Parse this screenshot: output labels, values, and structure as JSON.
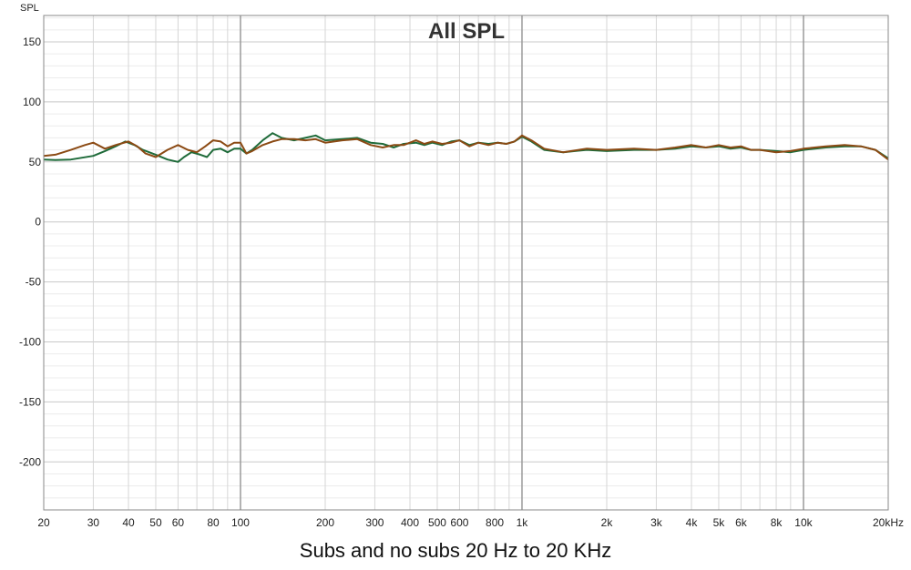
{
  "caption": "Subs and no subs 20 Hz to 20 KHz",
  "chart_data": {
    "type": "line",
    "title": "All SPL",
    "ylabel": "SPL",
    "xlabel": "",
    "x_scale": "log",
    "xlim": [
      20,
      20000
    ],
    "ylim": [
      -240,
      172
    ],
    "y_ticks": [
      150,
      100,
      50,
      0,
      -50,
      -100,
      -150,
      -200
    ],
    "x_ticks": [
      {
        "v": 20,
        "label": "20"
      },
      {
        "v": 30,
        "label": "30"
      },
      {
        "v": 40,
        "label": "40"
      },
      {
        "v": 50,
        "label": "50"
      },
      {
        "v": 60,
        "label": "60"
      },
      {
        "v": 80,
        "label": "80"
      },
      {
        "v": 100,
        "label": "100"
      },
      {
        "v": 200,
        "label": "200"
      },
      {
        "v": 300,
        "label": "300"
      },
      {
        "v": 400,
        "label": "400"
      },
      {
        "v": 500,
        "label": "500"
      },
      {
        "v": 600,
        "label": "600"
      },
      {
        "v": 800,
        "label": "800"
      },
      {
        "v": 1000,
        "label": "1k"
      },
      {
        "v": 2000,
        "label": "2k"
      },
      {
        "v": 3000,
        "label": "3k"
      },
      {
        "v": 4000,
        "label": "4k"
      },
      {
        "v": 5000,
        "label": "5k"
      },
      {
        "v": 6000,
        "label": "6k"
      },
      {
        "v": 8000,
        "label": "8k"
      },
      {
        "v": 10000,
        "label": "10k"
      },
      {
        "v": 20000,
        "label": "20kHz"
      }
    ],
    "grid": true,
    "series": [
      {
        "color": "#1f6b3a",
        "points": [
          [
            20,
            52
          ],
          [
            22,
            51.5
          ],
          [
            25,
            52
          ],
          [
            30,
            55
          ],
          [
            33,
            59
          ],
          [
            36,
            63
          ],
          [
            39,
            67
          ],
          [
            42,
            64
          ],
          [
            45,
            60
          ],
          [
            50,
            56
          ],
          [
            55,
            52
          ],
          [
            60,
            50
          ],
          [
            63,
            54
          ],
          [
            67,
            58
          ],
          [
            72,
            56
          ],
          [
            76,
            54
          ],
          [
            80,
            60
          ],
          [
            85,
            61
          ],
          [
            90,
            58
          ],
          [
            95,
            61
          ],
          [
            100,
            61
          ],
          [
            105,
            57
          ],
          [
            110,
            60
          ],
          [
            120,
            68
          ],
          [
            130,
            74
          ],
          [
            140,
            70
          ],
          [
            155,
            68
          ],
          [
            170,
            70
          ],
          [
            185,
            72
          ],
          [
            200,
            68
          ],
          [
            230,
            69
          ],
          [
            260,
            70
          ],
          [
            290,
            66
          ],
          [
            320,
            65
          ],
          [
            350,
            62
          ],
          [
            380,
            65
          ],
          [
            420,
            66
          ],
          [
            450,
            64
          ],
          [
            480,
            66
          ],
          [
            520,
            64
          ],
          [
            560,
            67
          ],
          [
            600,
            68
          ],
          [
            650,
            64
          ],
          [
            700,
            66
          ],
          [
            760,
            65
          ],
          [
            820,
            66
          ],
          [
            880,
            65
          ],
          [
            940,
            67
          ],
          [
            1000,
            71
          ],
          [
            1080,
            67
          ],
          [
            1200,
            60
          ],
          [
            1400,
            58
          ],
          [
            1700,
            60
          ],
          [
            2000,
            59
          ],
          [
            2500,
            60
          ],
          [
            3000,
            60
          ],
          [
            3500,
            61
          ],
          [
            4000,
            63
          ],
          [
            4500,
            62
          ],
          [
            5000,
            63
          ],
          [
            5500,
            61
          ],
          [
            6000,
            62
          ],
          [
            6500,
            60
          ],
          [
            7000,
            60
          ],
          [
            8000,
            59
          ],
          [
            9000,
            58
          ],
          [
            10000,
            60
          ],
          [
            12000,
            62
          ],
          [
            14000,
            63
          ],
          [
            16000,
            63
          ],
          [
            18000,
            60
          ],
          [
            20000,
            53
          ]
        ]
      },
      {
        "color": "#8b4a14",
        "points": [
          [
            20,
            55
          ],
          [
            22,
            56
          ],
          [
            25,
            60
          ],
          [
            28,
            64
          ],
          [
            30,
            66
          ],
          [
            33,
            61
          ],
          [
            36,
            64
          ],
          [
            40,
            67
          ],
          [
            43,
            63
          ],
          [
            46,
            57
          ],
          [
            50,
            54
          ],
          [
            55,
            60
          ],
          [
            60,
            64
          ],
          [
            65,
            60
          ],
          [
            70,
            58
          ],
          [
            75,
            63
          ],
          [
            80,
            68
          ],
          [
            85,
            67
          ],
          [
            90,
            63
          ],
          [
            95,
            66
          ],
          [
            100,
            66
          ],
          [
            105,
            57
          ],
          [
            110,
            59
          ],
          [
            120,
            64
          ],
          [
            130,
            67
          ],
          [
            140,
            69
          ],
          [
            155,
            69
          ],
          [
            170,
            68
          ],
          [
            185,
            69
          ],
          [
            200,
            66
          ],
          [
            230,
            68
          ],
          [
            260,
            69
          ],
          [
            290,
            64
          ],
          [
            320,
            62
          ],
          [
            350,
            64
          ],
          [
            380,
            64
          ],
          [
            420,
            68
          ],
          [
            450,
            65
          ],
          [
            480,
            67
          ],
          [
            520,
            65
          ],
          [
            560,
            66
          ],
          [
            600,
            68
          ],
          [
            650,
            63
          ],
          [
            700,
            66
          ],
          [
            760,
            64
          ],
          [
            820,
            66
          ],
          [
            880,
            65
          ],
          [
            940,
            67
          ],
          [
            1000,
            72
          ],
          [
            1080,
            68
          ],
          [
            1200,
            61
          ],
          [
            1400,
            58
          ],
          [
            1700,
            61
          ],
          [
            2000,
            60
          ],
          [
            2500,
            61
          ],
          [
            3000,
            60
          ],
          [
            3500,
            62
          ],
          [
            4000,
            64
          ],
          [
            4500,
            62
          ],
          [
            5000,
            64
          ],
          [
            5500,
            62
          ],
          [
            6000,
            63
          ],
          [
            6500,
            60
          ],
          [
            7000,
            60
          ],
          [
            8000,
            58
          ],
          [
            9000,
            59
          ],
          [
            10000,
            61
          ],
          [
            12000,
            63
          ],
          [
            14000,
            64
          ],
          [
            16000,
            63
          ],
          [
            18000,
            60
          ],
          [
            20000,
            52
          ]
        ]
      }
    ]
  }
}
